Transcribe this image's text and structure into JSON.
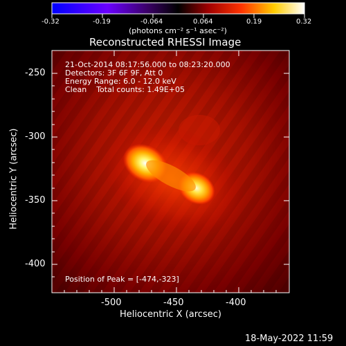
{
  "colorbar": {
    "ticks": [
      "-0.32",
      "-0.19",
      "-0.064",
      "0.064",
      "0.19",
      "0.32"
    ],
    "unit_label": "(photons cm⁻² s⁻¹ asec⁻²)"
  },
  "plot": {
    "title": "Reconstructed RHESSI Image",
    "info_lines": [
      "21-Oct-2014 08:17:56.000 to 08:23:20.000",
      "Detectors: 3F 6F 9F, Att 0",
      "Energy Range: 6.0 - 12.0 keV",
      "Clean    Total counts: 1.49E+05"
    ],
    "peak_text": "Position of Peak = [-474,-323]",
    "x_axis": {
      "label": "Heliocentric X (arcsec)",
      "ticks": [
        "-500",
        "-450",
        "-400"
      ]
    },
    "y_axis": {
      "label": "Heliocentric Y (arcsec)",
      "ticks": [
        "-250",
        "-300",
        "-350",
        "-400"
      ]
    }
  },
  "footer": {
    "timestamp": "18-May-2022 11:59"
  }
}
